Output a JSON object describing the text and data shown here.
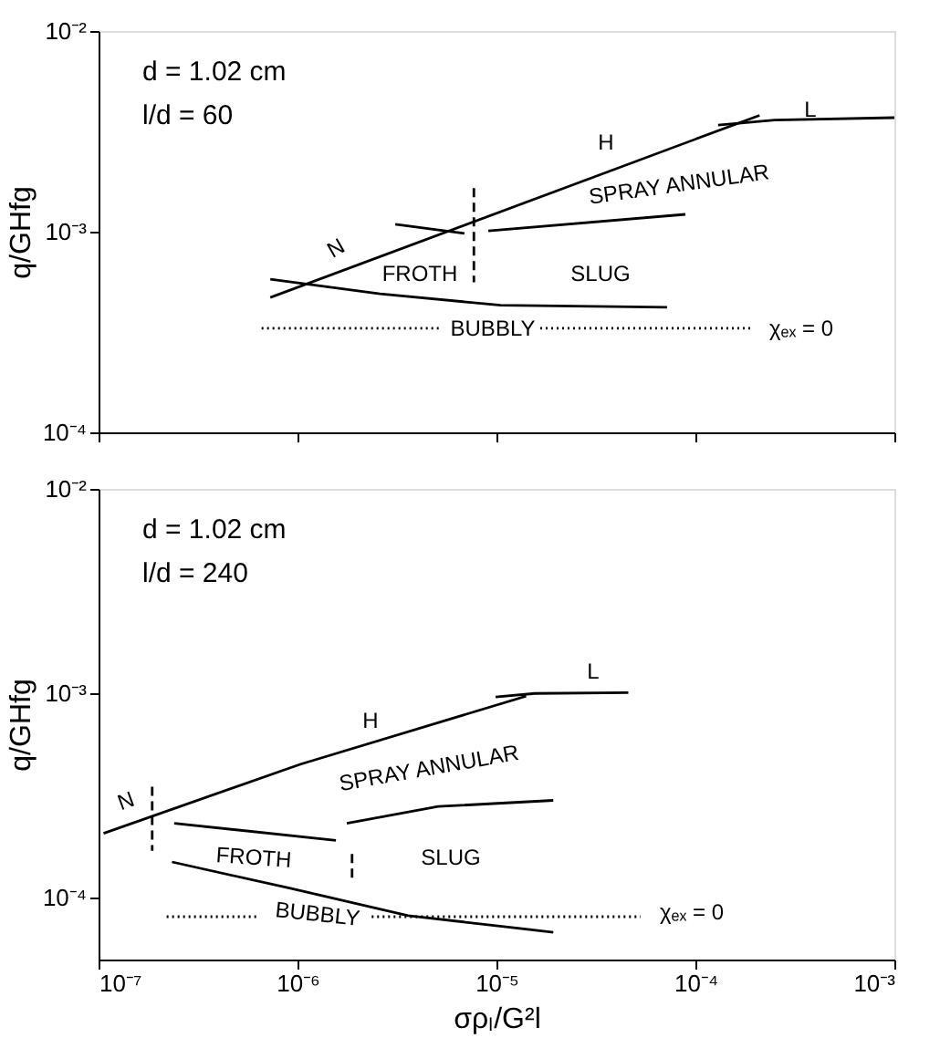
{
  "chart_data": [
    {
      "type": "line",
      "ylabel": "q/GHfg",
      "xlim": [
        1e-07,
        0.001
      ],
      "ylim": [
        0.0001,
        0.01
      ],
      "log": "xy",
      "grid": false,
      "tick_labels": "y",
      "xticks": [
        {
          "value": 1e-07,
          "label": null
        },
        {
          "value": 1e-06,
          "label": null
        },
        {
          "value": 1e-05,
          "label": null
        },
        {
          "value": 0.0001,
          "label": null
        },
        {
          "value": 0.001,
          "label": null
        }
      ],
      "yticks": [
        {
          "value": 0.0001,
          "label": "10⁻⁴"
        },
        {
          "value": 0.001,
          "label": "10⁻³"
        },
        {
          "value": 0.01,
          "label": "10⁻²"
        }
      ],
      "series": [
        {
          "color": "#000000",
          "line_style": "solid",
          "x": [
            7.3e-07,
            0.00021
          ],
          "values": [
            0.00047,
            0.0038
          ]
        },
        {
          "color": "#000000",
          "line_style": "solid",
          "x": [
            0.00013,
            0.00025,
            0.001
          ],
          "values": [
            0.0034,
            0.0036,
            0.0037
          ]
        },
        {
          "color": "#000000",
          "line_style": "solid",
          "x": [
            3.1e-06,
            6.9e-06
          ],
          "values": [
            0.00109,
            0.00098
          ]
        },
        {
          "color": "#000000",
          "line_style": "solid",
          "x": [
            9.1e-06,
            8.9e-05
          ],
          "values": [
            0.00101,
            0.00122
          ]
        },
        {
          "color": "#000000",
          "line_style": "solid",
          "x": [
            7.3e-07,
            2.6e-06,
            1.05e-05,
            7.2e-05
          ],
          "values": [
            0.00058,
            0.00049,
            0.00043,
            0.00042
          ]
        },
        {
          "color": "#000000",
          "line_style": "dashed",
          "x": [
            7.7e-06,
            7.7e-06
          ],
          "values": [
            0.00165,
            0.00056
          ]
        },
        {
          "color": "#000000",
          "line_style": "dotted",
          "x": [
            6.6e-07,
            5.2e-06,
            9.4e-06,
            1.66e-05,
            0.000193
          ],
          "values": [
            0.00033,
            0.00033,
            null,
            0.00033,
            0.00033
          ]
        }
      ],
      "annotations": [
        "d = 1.02 cm",
        "l/d = 60",
        "N",
        "H",
        "L",
        "SPRAY ANNULAR",
        "FROTH",
        "SLUG",
        "BUBBLY",
        "χₑₓ = 0"
      ]
    },
    {
      "type": "line",
      "xlabel": "σρₗ/G²l",
      "ylabel": "q/GHfg",
      "xlim": [
        1e-07,
        0.001
      ],
      "ylim": [
        5e-05,
        0.01
      ],
      "log": "xy",
      "grid": false,
      "xticks": [
        {
          "value": 1e-07,
          "label": "10⁻⁷"
        },
        {
          "value": 1e-06,
          "label": "10⁻⁶"
        },
        {
          "value": 1e-05,
          "label": "10⁻⁵"
        },
        {
          "value": 0.0001,
          "label": "10⁻⁴"
        },
        {
          "value": 0.001,
          "label": "10⁻³"
        }
      ],
      "yticks": [
        {
          "value": 0.0001,
          "label": "10⁻⁴"
        },
        {
          "value": 0.001,
          "label": "10⁻³"
        },
        {
          "value": 0.01,
          "label": "10⁻²"
        }
      ],
      "series": [
        {
          "color": "#000000",
          "line_style": "solid",
          "x": [
            1.06e-07,
            1.03e-06,
            1.41e-05
          ],
          "values": [
            0.000207,
            0.00045,
            0.00097
          ]
        },
        {
          "color": "#000000",
          "line_style": "solid",
          "x": [
            9.9e-06,
            1.56e-05,
            4.6e-05
          ],
          "values": [
            0.00096,
            0.001,
            0.00101
          ]
        },
        {
          "color": "#000000",
          "line_style": "dashed",
          "x": [
            1.86e-07,
            1.86e-07
          ],
          "values": [
            0.00035,
            0.00017
          ]
        },
        {
          "color": "#000000",
          "line_style": "solid",
          "x": [
            2.4e-07,
            1.56e-06
          ],
          "values": [
            0.000232,
            0.000191
          ]
        },
        {
          "color": "#000000",
          "line_style": "solid",
          "x": [
            1.77e-06,
            5.1e-06,
            1.93e-05
          ],
          "values": [
            0.000232,
            0.00028,
            0.0003
          ]
        },
        {
          "color": "#000000",
          "line_style": "dashed",
          "x": [
            1.88e-06,
            1.88e-06
          ],
          "values": [
            0.000164,
            0.00012
          ]
        },
        {
          "color": "#000000",
          "line_style": "solid",
          "x": [
            2.34e-07,
            9e-07,
            3.6e-06,
            1.93e-05
          ],
          "values": [
            0.00015,
            0.000112,
            8.2e-05,
            6.8e-05
          ]
        },
        {
          "color": "#000000",
          "line_style": "dotted",
          "x": [
            2.2e-07,
            6.3e-07,
            1.2e-06,
            2.36e-06,
            5.3e-05
          ],
          "values": [
            8.1e-05,
            8.1e-05,
            null,
            8.1e-05,
            8.1e-05
          ]
        }
      ],
      "annotations": [
        "d = 1.02 cm",
        "l/d = 240",
        "N",
        "H",
        "L",
        "SPRAY ANNULAR",
        "FROTH",
        "SLUG",
        "BUBBLY",
        "χₑₓ = 0"
      ]
    }
  ]
}
